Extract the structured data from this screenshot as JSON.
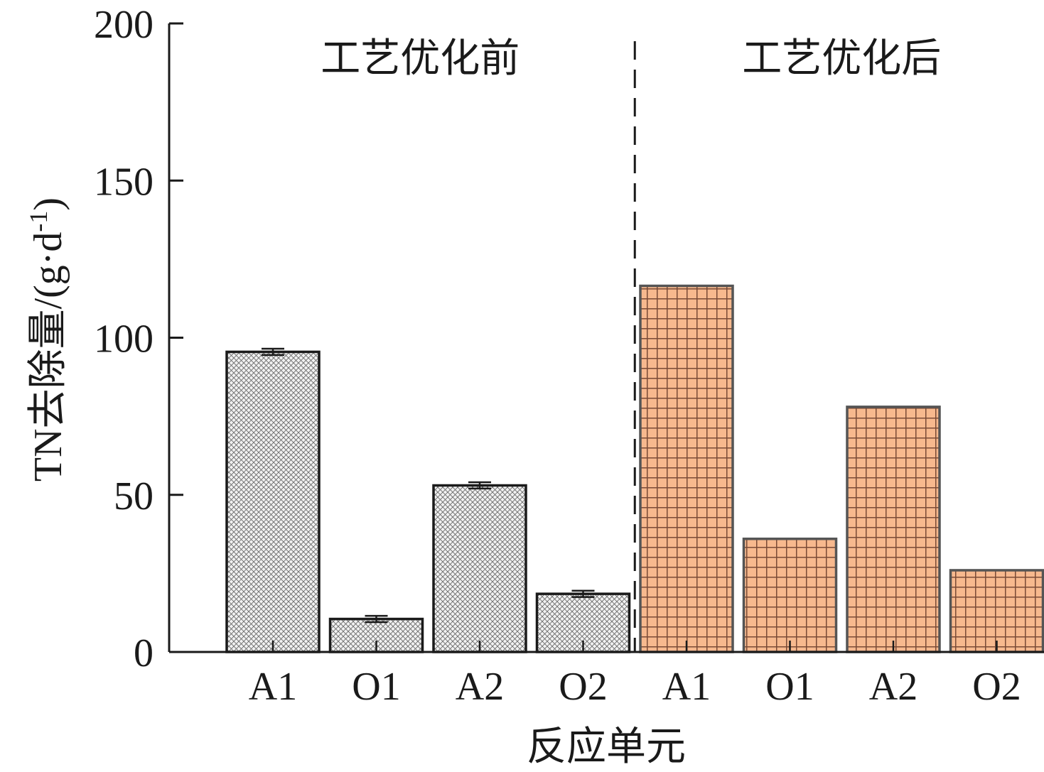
{
  "chart_data": {
    "type": "bar",
    "title": "",
    "xlabel": "反应单元",
    "ylabel": "TN去除量/(g·d",
    "ylabel_sup": "-1",
    "ylabel_close": ")",
    "ylim": [
      0,
      200
    ],
    "yticks": [
      0,
      50,
      100,
      150,
      200
    ],
    "yticks_labels": [
      "0",
      "50",
      "100",
      "150",
      "200"
    ],
    "groups": [
      {
        "label": "工艺优化前",
        "fill": "#f2f2f2",
        "pattern": "crosshatch",
        "categories": [
          "A1",
          "O1",
          "A2",
          "O2"
        ],
        "values": [
          95.5,
          10.5,
          53,
          18.5
        ],
        "errors": [
          1,
          1,
          1,
          1
        ]
      },
      {
        "label": "工艺优化后",
        "fill": "#f7b98e",
        "pattern": "grid",
        "categories": [
          "A1",
          "O1",
          "A2",
          "O2"
        ],
        "values": [
          116.5,
          36,
          78,
          26
        ],
        "errors": [
          0,
          0,
          0,
          0
        ]
      }
    ],
    "separator": "dashed vertical line between groups",
    "grid": false,
    "legend": "none"
  }
}
